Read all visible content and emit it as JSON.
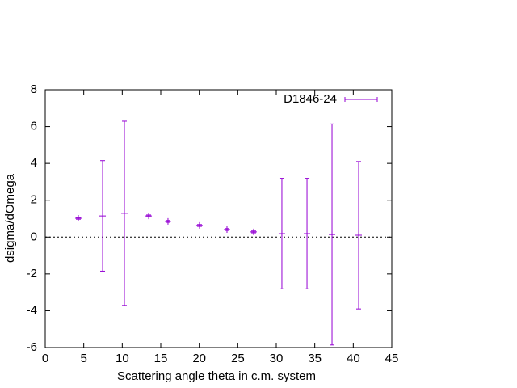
{
  "chart_data": {
    "type": "errorbar",
    "xlabel": "Scattering angle theta in c.m. system",
    "ylabel": "dsigma/dOmega",
    "xlim": [
      0,
      45
    ],
    "xticks": [
      0,
      5,
      10,
      15,
      20,
      25,
      30,
      35,
      40,
      45
    ],
    "ylim": [
      -6,
      8
    ],
    "yticks": [
      -6,
      -4,
      -2,
      0,
      2,
      4,
      6,
      8
    ],
    "zero_line": true,
    "legend": "top-right",
    "series": [
      {
        "name": "D1846-24",
        "color": "#9400d3",
        "x": [
          4.3,
          7.45,
          10.28,
          13.43,
          15.94,
          20.03,
          23.6,
          27.06,
          30.73,
          33.99,
          37.24,
          40.7
        ],
        "values": [
          1.02,
          1.15,
          1.29,
          1.15,
          0.85,
          0.63,
          0.41,
          0.28,
          0.19,
          0.19,
          0.14,
          0.1
        ],
        "errors": [
          0.05,
          3.0,
          5.0,
          0.05,
          0.05,
          0.05,
          0.05,
          0.05,
          3.0,
          3.0,
          6.0,
          4.0
        ]
      }
    ]
  }
}
